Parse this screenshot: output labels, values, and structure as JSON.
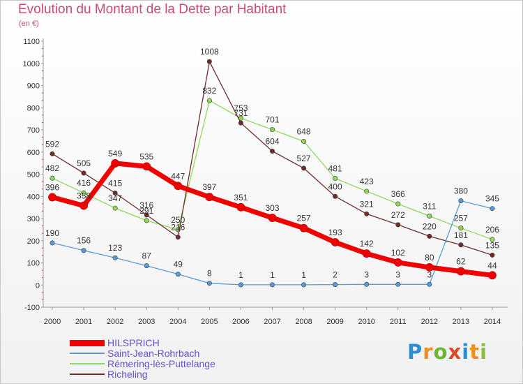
{
  "title": "Evolution du Montant de la Dette par Habitant",
  "unit": "(en €)",
  "logo": {
    "text": "Proxiti",
    "letter_colors": [
      "#2b8fd6",
      "#f28c1e",
      "#6cb830",
      "#e04a2a",
      "#2b8fd6",
      "#f28c1e",
      "#8ac03a"
    ]
  },
  "chart_data": {
    "type": "line",
    "x": [
      "2000",
      "2001",
      "2002",
      "2003",
      "2004",
      "2005",
      "2006",
      "2007",
      "2008",
      "2009",
      "2010",
      "2011",
      "2012",
      "2013",
      "2014"
    ],
    "ylim": [
      -100,
      1100
    ],
    "yticks": [
      "-100",
      "0",
      "100",
      "200",
      "300",
      "400",
      "500",
      "600",
      "700",
      "800",
      "900",
      "1000",
      "1100"
    ],
    "grid": false,
    "legend_position": "bottom-left",
    "series": [
      {
        "name": "HILSPRICH",
        "color": "#f00000",
        "labels": [
          "396",
          "358",
          "549",
          "535",
          "447",
          "397",
          "351",
          "303",
          "257",
          "193",
          "142",
          "102",
          "80",
          "62",
          "44"
        ],
        "values": [
          396,
          358,
          549,
          535,
          447,
          397,
          351,
          303,
          257,
          193,
          142,
          102,
          80,
          62,
          44
        ]
      },
      {
        "name": "Saint-Jean-Rohrbach",
        "color": "#5b9bd5",
        "labels": [
          "190",
          "156",
          "123",
          "87",
          "49",
          "8",
          "1",
          "1",
          "1",
          "2",
          "3",
          "3",
          "3",
          "380",
          "345"
        ],
        "values": [
          190,
          156,
          123,
          87,
          49,
          8,
          1,
          1,
          1,
          2,
          3,
          3,
          3,
          380,
          345
        ]
      },
      {
        "name": "Rémering-lès-Puttelange",
        "color": "#8fd85a",
        "labels": [
          "482",
          "416",
          "347",
          "291",
          "250",
          "832",
          "753",
          "701",
          "648",
          "481",
          "423",
          "366",
          "311",
          "257",
          "206"
        ],
        "values": [
          482,
          416,
          347,
          291,
          250,
          832,
          753,
          701,
          648,
          481,
          423,
          366,
          311,
          257,
          206
        ]
      },
      {
        "name": "Richeling",
        "color": "#702c2c",
        "labels": [
          "592",
          "505",
          "415",
          "316",
          "216",
          "1008",
          "731",
          "604",
          "527",
          "400",
          "321",
          "272",
          "220",
          "181",
          "135"
        ],
        "values": [
          592,
          505,
          415,
          316,
          216,
          1008,
          731,
          604,
          527,
          400,
          321,
          272,
          220,
          181,
          135
        ]
      }
    ]
  }
}
